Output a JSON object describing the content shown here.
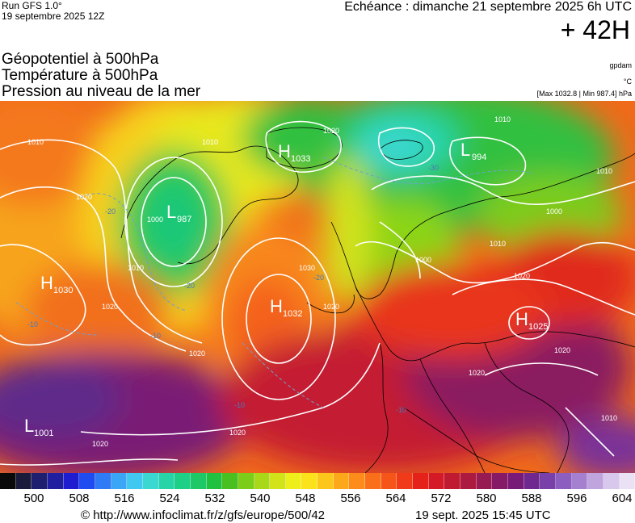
{
  "header": {
    "run": "Run GFS 1.0°",
    "run_date": "19 septembre 2025 12Z",
    "echeance": "Echéance : dimanche 21 septembre 2025 6h UTC",
    "hour": "+ 42H",
    "title_lines": [
      "Géopotentiel à 500hPa",
      "Température à 500hPa",
      "Pression au niveau de la mer"
    ],
    "unit1": "gpdam",
    "unit2": "°C",
    "unit3": "[Max 1032.8 | Min 987.4] hPa"
  },
  "map": {
    "pressure_centers": [
      {
        "type": "H",
        "value": "1033"
      },
      {
        "type": "L",
        "value": "994"
      },
      {
        "type": "L",
        "value": "987"
      },
      {
        "type": "H",
        "value": "1030"
      },
      {
        "type": "H",
        "value": "1032"
      },
      {
        "type": "H",
        "value": "1025"
      },
      {
        "type": "L",
        "value": "1001"
      }
    ],
    "isobar_labels": [
      "1010",
      "1010",
      "1020",
      "1000",
      "1010",
      "1020",
      "1030",
      "1020",
      "1000",
      "1010",
      "1020",
      "1010",
      "1000",
      "1020",
      "1020",
      "1020",
      "1020",
      "1020",
      "1010",
      "1010",
      "1020"
    ],
    "temp_labels": [
      "-20",
      "-20",
      "-10",
      "-30",
      "-20",
      "-10",
      "-10",
      "-10"
    ]
  },
  "scale": {
    "colors": [
      "#0a0a0a",
      "#1a1a3a",
      "#1f1f70",
      "#1f1fa0",
      "#1e1ed0",
      "#1e4cf0",
      "#2f7af5",
      "#3aa6f5",
      "#40c8f0",
      "#3ad8d0",
      "#26d4a8",
      "#1ecf86",
      "#1ec866",
      "#20c040",
      "#4ac020",
      "#7ccc1a",
      "#a8d818",
      "#d2e31a",
      "#eeee1a",
      "#fbe21a",
      "#fdc61a",
      "#fda81a",
      "#fd8c1a",
      "#fa701a",
      "#f6551a",
      "#f03a1a",
      "#e4221a",
      "#d41a26",
      "#c01a32",
      "#ac1a40",
      "#981a52",
      "#861a66",
      "#781a78",
      "#6e2890",
      "#7840a8",
      "#8c5ec0",
      "#a680d0",
      "#bfa4de",
      "#d8c8ec",
      "#eae2f4"
    ],
    "tick_labels": [
      "500",
      "508",
      "516",
      "524",
      "532",
      "540",
      "548",
      "556",
      "564",
      "572",
      "580",
      "588",
      "596",
      "604"
    ]
  },
  "footer": {
    "credit": "© http://www.infoclimat.fr/z/gfs/europe/500/42",
    "timestamp": "19 sept. 2025 15:45 UTC"
  }
}
